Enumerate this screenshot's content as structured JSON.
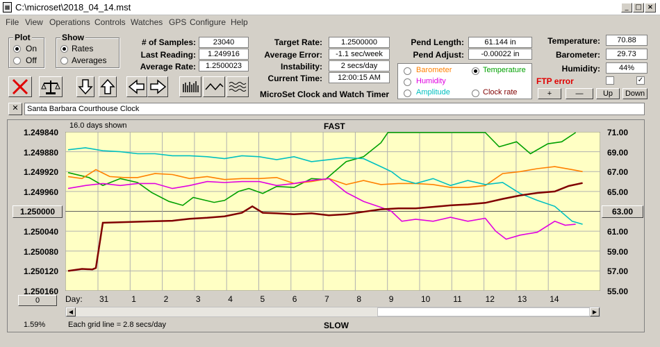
{
  "window": {
    "title": "C:\\microset\\2018_04_14.mst"
  },
  "menu": [
    "File",
    "View",
    "Operations",
    "Controls",
    "Watches",
    "GPS",
    "Configure",
    "Help"
  ],
  "plot_group": {
    "label": "Plot",
    "options": [
      "On",
      "Off"
    ],
    "selected": "On"
  },
  "show_group": {
    "label": "Show",
    "options": [
      "Rates",
      "Averages"
    ],
    "selected": "Rates"
  },
  "stats": {
    "samples_label": "# of Samples:",
    "samples": "23040",
    "last_label": "Last Reading:",
    "last": "1.249916",
    "avg_rate_label": "Average Rate:",
    "avg_rate": "1.2500023",
    "target_label": "Target Rate:",
    "target": "1.2500000",
    "avg_err_label": "Average Error:",
    "avg_err": "-1.1 sec/week",
    "instab_label": "Instability:",
    "instab": "2 secs/day",
    "time_label": "Current Time:",
    "time": "12:00:15 AM",
    "pend_len_label": "Pend Length:",
    "pend_len": "61.144 in",
    "pend_adj_label": "Pend Adjust:",
    "pend_adj": "-0.00022 in",
    "temp_label": "Temperature:",
    "temp": "70.88",
    "baro_label": "Barometer:",
    "baro": "29.73",
    "hum_label": "Humidity:",
    "hum": "44%"
  },
  "app_name": "MicroSet Clock and Watch Timer",
  "sensor_options": [
    {
      "label": "Barometer",
      "color": "#ff8000",
      "selected": false
    },
    {
      "label": "Temperature",
      "color": "#00a000",
      "selected": true
    },
    {
      "label": "Humidity",
      "color": "#e000e0",
      "selected": false
    },
    {
      "label": "Clock rate",
      "color": "#800000",
      "selected": false
    },
    {
      "label": "Amplitude",
      "color": "#00c0c0",
      "selected": false
    }
  ],
  "ftp_error": "FTP error",
  "scale_buttons": [
    "+",
    "—",
    "Up",
    "Down"
  ],
  "description": "Santa Barbara Courthouse Clock",
  "close_glyph": "✕",
  "chart_data": {
    "type": "line",
    "title": "FAST",
    "bottom_label": "SLOW",
    "days_shown": "16.0 days shown",
    "grid_note": "Each grid line = 2.8 secs/day",
    "percent": "1.59%",
    "left_ticks": [
      "1.249840",
      "1.249880",
      "1.249920",
      "1.249960",
      "1.250000",
      "1.250040",
      "1.250080",
      "1.250120",
      "1.250160"
    ],
    "left_center_button": "1.250000",
    "right_ticks": [
      "71.00",
      "69.00",
      "67.00",
      "65.00",
      "63.00",
      "61.00",
      "59.00",
      "57.00",
      "55.00"
    ],
    "right_center_button": "63.00",
    "left_bottom_button": "0",
    "x_axis_label": "Day:",
    "x_days": [
      "31",
      "1",
      "2",
      "3",
      "4",
      "5",
      "6",
      "7",
      "8",
      "9",
      "10",
      "11",
      "12",
      "13",
      "14"
    ],
    "ylim_left": [
      1.24984,
      1.25016
    ],
    "ylim_right": [
      55,
      71
    ],
    "series": [
      {
        "name": "Temperature",
        "color": "#00a000",
        "axis": "right",
        "x": [
          0,
          0.6,
          1,
          1.5,
          2,
          2.4,
          2.9,
          3.3,
          3.6,
          4.2,
          4.5,
          4.9,
          5.2,
          5.6,
          6,
          6.5,
          7,
          7.4,
          8,
          8.5,
          9,
          9.2,
          9.6,
          10,
          10.6,
          11,
          11.5,
          12,
          12.4,
          12.9,
          13.3,
          13.8,
          14.2,
          14.6
        ],
        "y": [
          66.9,
          66.4,
          65.6,
          66.3,
          65.9,
          64.9,
          64.0,
          63.6,
          64.4,
          63.9,
          64.1,
          65.0,
          65.3,
          64.8,
          65.5,
          65.4,
          66.3,
          66.2,
          68.0,
          68.5,
          69.9,
          71.0,
          71.0,
          71.0,
          71.0,
          71.0,
          71.0,
          71.0,
          69.5,
          70.0,
          68.8,
          69.8,
          70.0,
          71.0
        ]
      },
      {
        "name": "Barometer",
        "color": "#ff8000",
        "axis": "right",
        "x": [
          0,
          0.4,
          0.8,
          1.2,
          1.6,
          2,
          2.5,
          3,
          3.5,
          4,
          4.5,
          5,
          5.5,
          6,
          6.5,
          7,
          7.5,
          8,
          8.5,
          9,
          9.5,
          10,
          10.5,
          11,
          11.5,
          12,
          12.5,
          13,
          13.5,
          14,
          14.5,
          14.8
        ],
        "y": [
          66.5,
          66.3,
          67.2,
          66.5,
          66.4,
          66.4,
          66.8,
          66.7,
          66.3,
          66.5,
          66.2,
          66.3,
          66.3,
          66.4,
          65.8,
          66.0,
          66.3,
          65.7,
          66.1,
          65.7,
          65.8,
          65.8,
          65.7,
          65.4,
          65.4,
          65.6,
          66.8,
          67.0,
          67.3,
          67.5,
          67.2,
          67.0
        ]
      },
      {
        "name": "Humidity",
        "color": "#e000e0",
        "axis": "right",
        "x": [
          0,
          0.5,
          1,
          1.5,
          2,
          2.5,
          3,
          3.5,
          4,
          4.5,
          5,
          5.5,
          6,
          6.5,
          7,
          7.5,
          8,
          8.5,
          9,
          9.3,
          9.6,
          10,
          10.5,
          11,
          11.5,
          12,
          12.3,
          12.6,
          13,
          13.5,
          14,
          14.3,
          14.6
        ],
        "y": [
          65.3,
          65.6,
          65.8,
          65.6,
          65.8,
          65.8,
          65.3,
          65.6,
          66.0,
          65.9,
          66.0,
          66.0,
          65.6,
          65.8,
          66.1,
          66.3,
          64.9,
          64.0,
          63.4,
          63.0,
          62.0,
          62.2,
          62.0,
          62.4,
          62.0,
          62.3,
          61.0,
          60.2,
          60.6,
          60.9,
          62.0,
          61.6,
          61.7
        ]
      },
      {
        "name": "Amplitude",
        "color": "#00c0c0",
        "axis": "right",
        "x": [
          0,
          0.5,
          1,
          1.5,
          2,
          2.5,
          3,
          3.5,
          4,
          4.5,
          5,
          5.5,
          6,
          6.5,
          7,
          7.5,
          8,
          8.5,
          9,
          9.3,
          9.6,
          10,
          10.5,
          11,
          11.5,
          12,
          12.5,
          13,
          13.5,
          14,
          14.5,
          14.8
        ],
        "y": [
          69.2,
          69.4,
          69.1,
          69.0,
          68.8,
          68.8,
          68.6,
          68.6,
          68.5,
          68.3,
          68.6,
          68.5,
          68.2,
          68.5,
          68.0,
          68.2,
          68.4,
          68.3,
          67.5,
          67.0,
          66.2,
          65.8,
          66.3,
          65.6,
          66.1,
          65.7,
          65.9,
          64.8,
          64.1,
          63.5,
          62.0,
          61.7
        ]
      },
      {
        "name": "Clock rate",
        "color": "#800000",
        "axis": "left",
        "x": [
          0,
          0.4,
          0.7,
          0.8,
          1,
          1.5,
          2,
          2.5,
          3,
          3.5,
          4,
          4.5,
          5,
          5.3,
          5.6,
          6,
          6.5,
          7,
          7.5,
          8,
          8.5,
          9,
          9.5,
          10,
          10.5,
          11,
          11.5,
          12,
          12.5,
          13,
          13.5,
          14,
          14.4,
          14.8
        ],
        "y": [
          1.25012,
          1.250116,
          1.250117,
          1.250114,
          1.250023,
          1.250022,
          1.250021,
          1.25002,
          1.250019,
          1.250015,
          1.250013,
          1.25001,
          1.250003,
          1.24999,
          1.250003,
          1.250004,
          1.250006,
          1.250004,
          1.250008,
          1.250006,
          1.250001,
          1.249996,
          1.249994,
          1.249994,
          1.249991,
          1.249988,
          1.249986,
          1.249983,
          1.249975,
          1.249968,
          1.249963,
          1.24996,
          1.249949,
          1.249943
        ]
      }
    ]
  }
}
